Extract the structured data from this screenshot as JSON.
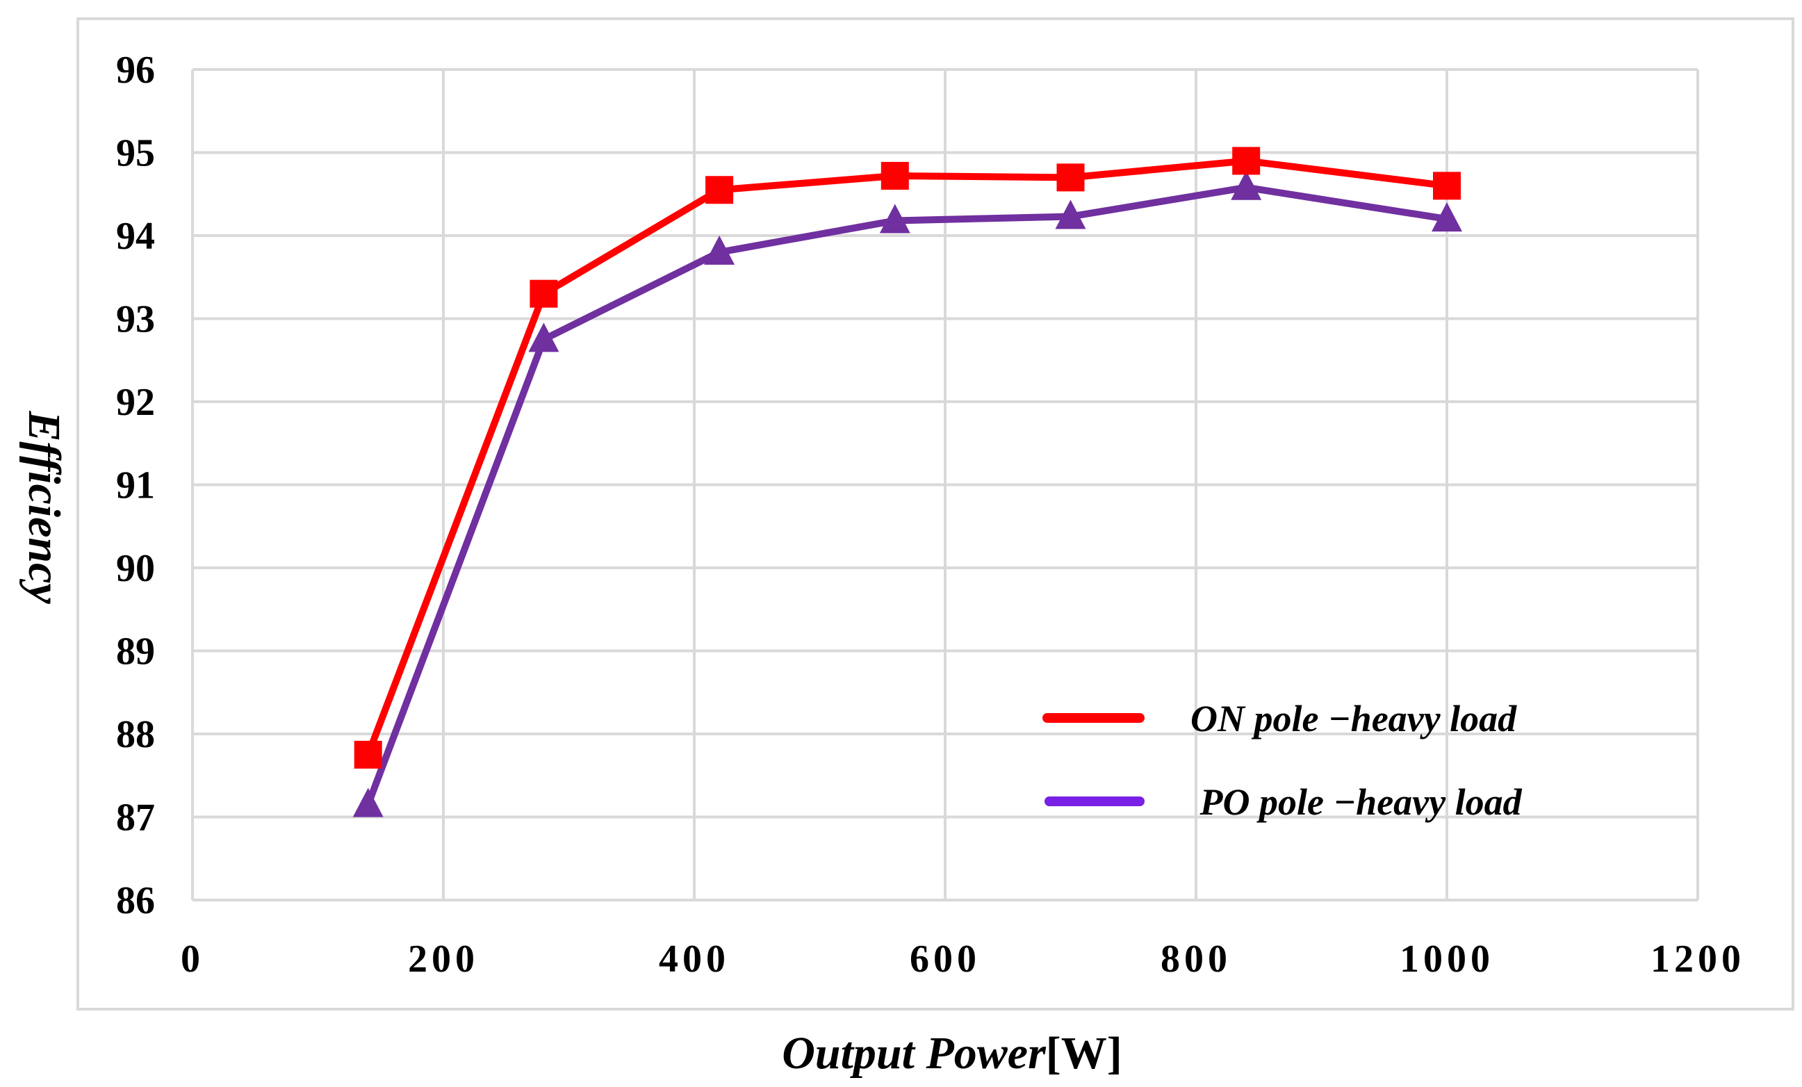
{
  "chart_data": {
    "type": "line",
    "title": "",
    "xlabel_italic": "Output Power",
    "xlabel_unit": "[W]",
    "ylabel": "Efficiency",
    "xlim": [
      0,
      1200
    ],
    "ylim": [
      86,
      96
    ],
    "xticks": [
      0,
      200,
      400,
      600,
      800,
      1000,
      1200
    ],
    "yticks": [
      86,
      87,
      88,
      89,
      90,
      91,
      92,
      93,
      94,
      95,
      96
    ],
    "grid": true,
    "legend_position": "bottom-right",
    "x": [
      140,
      280,
      420,
      560,
      700,
      840,
      1000
    ],
    "series": [
      {
        "name": "ON pole −heavy load",
        "color": "#ff0000",
        "legend_line_color": "#ff0000",
        "marker": "square",
        "values": [
          87.75,
          93.3,
          94.55,
          94.72,
          94.7,
          94.9,
          94.6
        ]
      },
      {
        "name": " PO pole −heavy load",
        "color": "#7030a0",
        "legend_line_color": "#7a1fe6",
        "marker": "triangle",
        "values": [
          87.15,
          92.75,
          93.8,
          94.18,
          94.23,
          94.58,
          94.2
        ]
      }
    ]
  }
}
